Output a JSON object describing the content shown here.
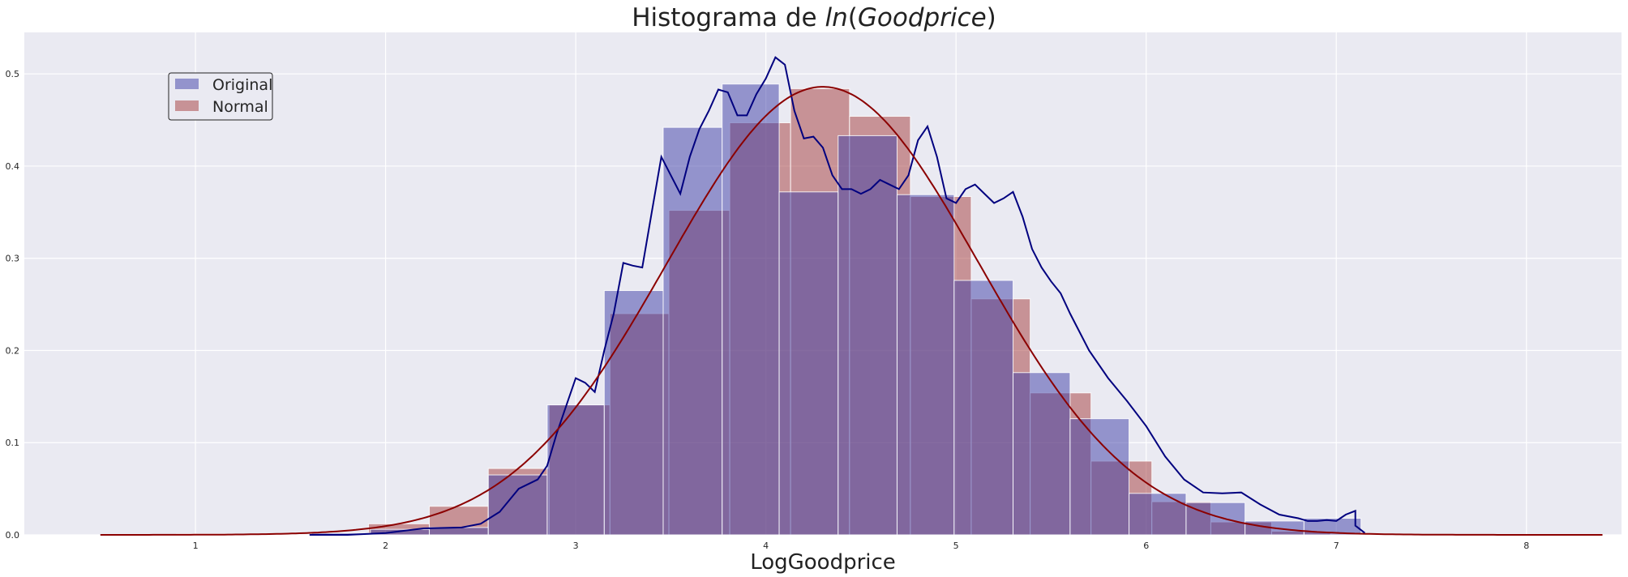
{
  "chart_data": {
    "type": "histogram",
    "title_parts": {
      "prefix": "Histograma de ",
      "func": "ln",
      "open": "(",
      "var": "Goodprice",
      "close": ")"
    },
    "xlabel": "LogGoodprice",
    "ylabel": "",
    "xlim": [
      0.1,
      8.5
    ],
    "ylim": [
      0,
      0.545
    ],
    "xticks": [
      1,
      2,
      3,
      4,
      5,
      6,
      7,
      8
    ],
    "yticks": [
      0.0,
      0.1,
      0.2,
      0.3,
      0.4,
      0.5
    ],
    "grid": true,
    "legend_position": "upper-left",
    "series": [
      {
        "name": "Original",
        "color": "#3B3BA6",
        "opacity": 0.5,
        "bins": [
          {
            "x0": 1.61,
            "x1": 1.92,
            "y": 0.002
          },
          {
            "x0": 1.92,
            "x1": 2.23,
            "y": 0.006
          },
          {
            "x0": 2.23,
            "x1": 2.54,
            "y": 0.008
          },
          {
            "x0": 2.54,
            "x1": 2.85,
            "y": 0.065
          },
          {
            "x0": 2.85,
            "x1": 3.15,
            "y": 0.141
          },
          {
            "x0": 3.15,
            "x1": 3.46,
            "y": 0.265
          },
          {
            "x0": 3.46,
            "x1": 3.77,
            "y": 0.442
          },
          {
            "x0": 3.77,
            "x1": 4.07,
            "y": 0.489
          },
          {
            "x0": 4.07,
            "x1": 4.38,
            "y": 0.372
          },
          {
            "x0": 4.38,
            "x1": 4.69,
            "y": 0.433
          },
          {
            "x0": 4.69,
            "x1": 4.99,
            "y": 0.369
          },
          {
            "x0": 4.99,
            "x1": 5.3,
            "y": 0.276
          },
          {
            "x0": 5.3,
            "x1": 5.6,
            "y": 0.176
          },
          {
            "x0": 5.6,
            "x1": 5.91,
            "y": 0.126
          },
          {
            "x0": 5.91,
            "x1": 6.21,
            "y": 0.045
          },
          {
            "x0": 6.21,
            "x1": 6.52,
            "y": 0.035
          },
          {
            "x0": 6.52,
            "x1": 6.83,
            "y": 0.015
          },
          {
            "x0": 6.83,
            "x1": 7.13,
            "y": 0.018
          }
        ],
        "kde": {
          "color": "#00007F",
          "x": [
            1.6,
            1.8,
            2.0,
            2.2,
            2.4,
            2.5,
            2.6,
            2.7,
            2.8,
            2.85,
            2.9,
            2.95,
            3.0,
            3.05,
            3.1,
            3.15,
            3.2,
            3.25,
            3.3,
            3.35,
            3.4,
            3.45,
            3.5,
            3.55,
            3.6,
            3.65,
            3.7,
            3.75,
            3.8,
            3.85,
            3.9,
            3.95,
            4.0,
            4.05,
            4.1,
            4.15,
            4.2,
            4.25,
            4.3,
            4.35,
            4.4,
            4.45,
            4.5,
            4.55,
            4.6,
            4.65,
            4.7,
            4.75,
            4.8,
            4.85,
            4.9,
            4.95,
            5.0,
            5.05,
            5.1,
            5.15,
            5.2,
            5.25,
            5.3,
            5.35,
            5.4,
            5.45,
            5.5,
            5.55,
            5.6,
            5.7,
            5.8,
            5.9,
            6.0,
            6.1,
            6.2,
            6.3,
            6.4,
            6.5,
            6.6,
            6.7,
            6.8,
            6.85,
            6.9,
            6.95,
            7.0,
            7.05,
            7.1
          ],
          "y": [
            0.0,
            0.0,
            0.002,
            0.007,
            0.008,
            0.012,
            0.025,
            0.05,
            0.06,
            0.075,
            0.11,
            0.14,
            0.17,
            0.165,
            0.155,
            0.2,
            0.24,
            0.295,
            0.292,
            0.29,
            0.35,
            0.41,
            0.39,
            0.37,
            0.41,
            0.44,
            0.46,
            0.483,
            0.48,
            0.455,
            0.455,
            0.478,
            0.495,
            0.518,
            0.51,
            0.46,
            0.43,
            0.432,
            0.42,
            0.39,
            0.375,
            0.375,
            0.37,
            0.375,
            0.385,
            0.38,
            0.375,
            0.39,
            0.428,
            0.443,
            0.41,
            0.365,
            0.36,
            0.375,
            0.38,
            0.37,
            0.36,
            0.365,
            0.372,
            0.345,
            0.31,
            0.29,
            0.275,
            0.262,
            0.24,
            0.2,
            0.17,
            0.145,
            0.118,
            0.085,
            0.06,
            0.046,
            0.045,
            0.046,
            0.033,
            0.022,
            0.018,
            0.015,
            0.015,
            0.016,
            0.015,
            0.022,
            0.026
          ],
          "x_tail": [
            7.1,
            7.15
          ],
          "y_tail": [
            0.01,
            0.002
          ]
        }
      },
      {
        "name": "Normal",
        "color": "#A33A3A",
        "opacity": 0.5,
        "bins": [
          {
            "x0": 0.9,
            "x1": 1.21,
            "y": 0.001
          },
          {
            "x0": 1.91,
            "x1": 2.23,
            "y": 0.012
          },
          {
            "x0": 2.23,
            "x1": 2.54,
            "y": 0.031
          },
          {
            "x0": 2.54,
            "x1": 2.86,
            "y": 0.072
          },
          {
            "x0": 2.86,
            "x1": 3.18,
            "y": 0.141
          },
          {
            "x0": 3.18,
            "x1": 3.49,
            "y": 0.24
          },
          {
            "x0": 3.49,
            "x1": 3.81,
            "y": 0.352
          },
          {
            "x0": 3.81,
            "x1": 4.13,
            "y": 0.447
          },
          {
            "x0": 4.13,
            "x1": 4.44,
            "y": 0.484
          },
          {
            "x0": 4.44,
            "x1": 4.76,
            "y": 0.454
          },
          {
            "x0": 4.76,
            "x1": 5.08,
            "y": 0.367
          },
          {
            "x0": 5.08,
            "x1": 5.39,
            "y": 0.256
          },
          {
            "x0": 5.39,
            "x1": 5.71,
            "y": 0.154
          },
          {
            "x0": 5.71,
            "x1": 6.03,
            "y": 0.08
          },
          {
            "x0": 6.03,
            "x1": 6.34,
            "y": 0.036
          },
          {
            "x0": 6.34,
            "x1": 6.66,
            "y": 0.014
          },
          {
            "x0": 6.66,
            "x1": 6.97,
            "y": 0.004
          },
          {
            "x0": 6.97,
            "x1": 7.29,
            "y": 0.001
          }
        ],
        "kde": {
          "color": "#8B0000",
          "mean": 4.3,
          "std": 0.82,
          "x_start": 0.5,
          "x_end": 8.4
        }
      }
    ]
  }
}
